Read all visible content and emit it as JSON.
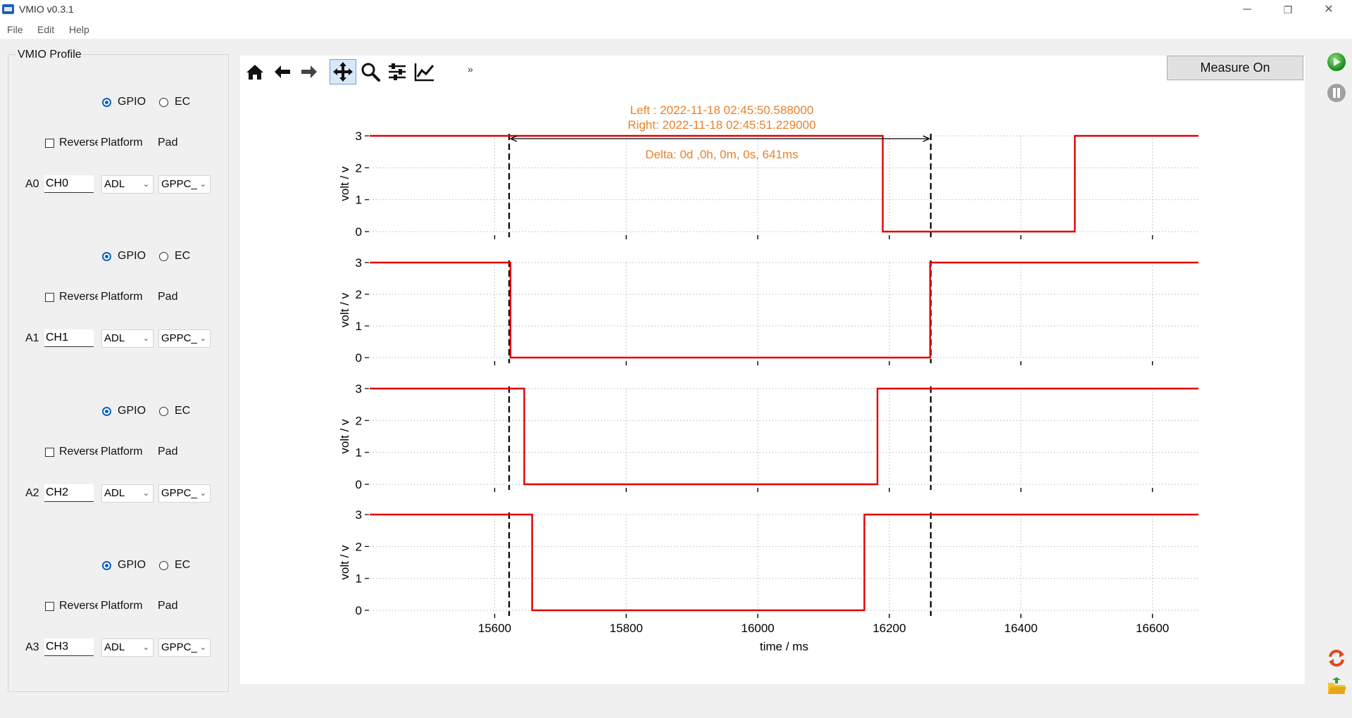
{
  "window": {
    "title": "VMIO v0.3.1",
    "minimize": "─",
    "restore": "❐",
    "close": "✕"
  },
  "menu": [
    "File",
    "Edit",
    "Help"
  ],
  "profile": {
    "title": "VMIO Profile",
    "channels": [
      {
        "addr": "A0",
        "mode_gpio": "GPIO",
        "mode_ec": "EC",
        "selected_mode": "GPIO",
        "reverse_label": "Reverse",
        "reverse_checked": false,
        "platform_label": "Platform",
        "pad_label": "Pad",
        "name": "CH0",
        "platform": "ADL",
        "pad": "GPPC_"
      },
      {
        "addr": "A1",
        "mode_gpio": "GPIO",
        "mode_ec": "EC",
        "selected_mode": "GPIO",
        "reverse_label": "Reverse",
        "reverse_checked": false,
        "platform_label": "Platform",
        "pad_label": "Pad",
        "name": "CH1",
        "platform": "ADL",
        "pad": "GPPC_"
      },
      {
        "addr": "A2",
        "mode_gpio": "GPIO",
        "mode_ec": "EC",
        "selected_mode": "GPIO",
        "reverse_label": "Reverse",
        "reverse_checked": false,
        "platform_label": "Platform",
        "pad_label": "Pad",
        "name": "CH2",
        "platform": "ADL",
        "pad": "GPPC_"
      },
      {
        "addr": "A3",
        "mode_gpio": "GPIO",
        "mode_ec": "EC",
        "selected_mode": "GPIO",
        "reverse_label": "Reverse",
        "reverse_checked": false,
        "platform_label": "Platform",
        "pad_label": "Pad",
        "name": "CH3",
        "platform": "ADL",
        "pad": "GPPC_"
      }
    ]
  },
  "toolbar": {
    "tools": [
      "home-icon",
      "back-arrow-icon",
      "forward-arrow-icon",
      "pan-icon",
      "zoom-icon",
      "configure-subplots-icon",
      "edit-axes-icon"
    ],
    "active_tool": "pan-icon",
    "more": "»"
  },
  "measure_button": "Measure On",
  "side_icons": [
    "start-icon",
    "pause-icon",
    "refresh-icon",
    "open-folder-icon"
  ],
  "colors": {
    "signal": "#e00000",
    "annotation": "#e8822a",
    "accent": "#0f5fb8"
  },
  "chart_data": {
    "type": "line",
    "step": true,
    "xlabel": "time / ms",
    "ylabel": "volt / v",
    "xlim": [
      15410,
      16670
    ],
    "ylim": [
      0,
      3
    ],
    "xticks": [
      15600,
      15800,
      16000,
      16200,
      16400,
      16600
    ],
    "yticks": [
      0,
      1,
      2,
      3
    ],
    "grid": true,
    "cursors": {
      "left": 15622,
      "right": 16263
    },
    "annotation": {
      "left": "Left  : 2022-11-18 02:45:50.588000",
      "right": "Right: 2022-11-18 02:45:51.229000",
      "delta": "Delta: 0d ,0h, 0m, 0s, 641ms"
    },
    "series": [
      {
        "x": [
          15410,
          16190,
          16190,
          16482,
          16482,
          16670
        ],
        "y": [
          3,
          3,
          0,
          0,
          3,
          3
        ]
      },
      {
        "x": [
          15410,
          15624,
          15624,
          16262,
          16262,
          16670
        ],
        "y": [
          3,
          3,
          0,
          0,
          3,
          3
        ]
      },
      {
        "x": [
          15410,
          15645,
          15645,
          16182,
          16182,
          16670
        ],
        "y": [
          3,
          3,
          0,
          0,
          3,
          3
        ]
      },
      {
        "x": [
          15410,
          15657,
          15657,
          16162,
          16162,
          16670
        ],
        "y": [
          3,
          3,
          0,
          0,
          3,
          3
        ]
      }
    ]
  }
}
